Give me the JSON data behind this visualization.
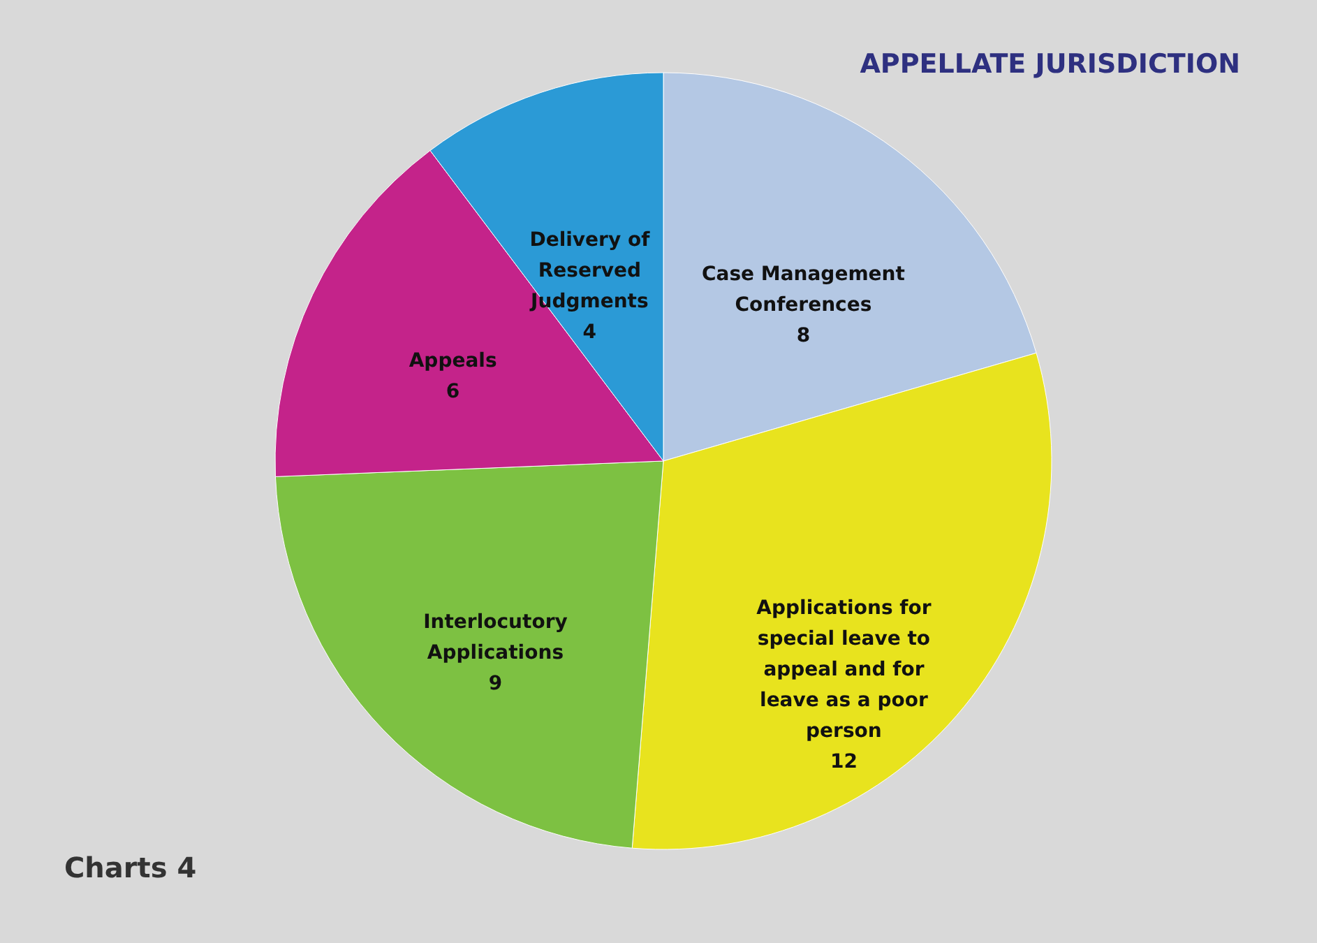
{
  "chart_data": {
    "type": "pie",
    "title": "APPELLATE JURISDICTION",
    "categories": [
      "Case Management Conferences",
      "Applications for special leave to appeal and for leave as a poor person",
      "Interlocutory Applications",
      "Appeals",
      "Delivery of Reserved Judgments"
    ],
    "values": [
      8,
      12,
      9,
      6,
      4
    ],
    "colors": [
      "#b4c8e4",
      "#e8e31e",
      "#7dc142",
      "#c4238a",
      "#2b9ad6"
    ],
    "data_labels": true,
    "annotations": [
      "Charts 4"
    ]
  }
}
